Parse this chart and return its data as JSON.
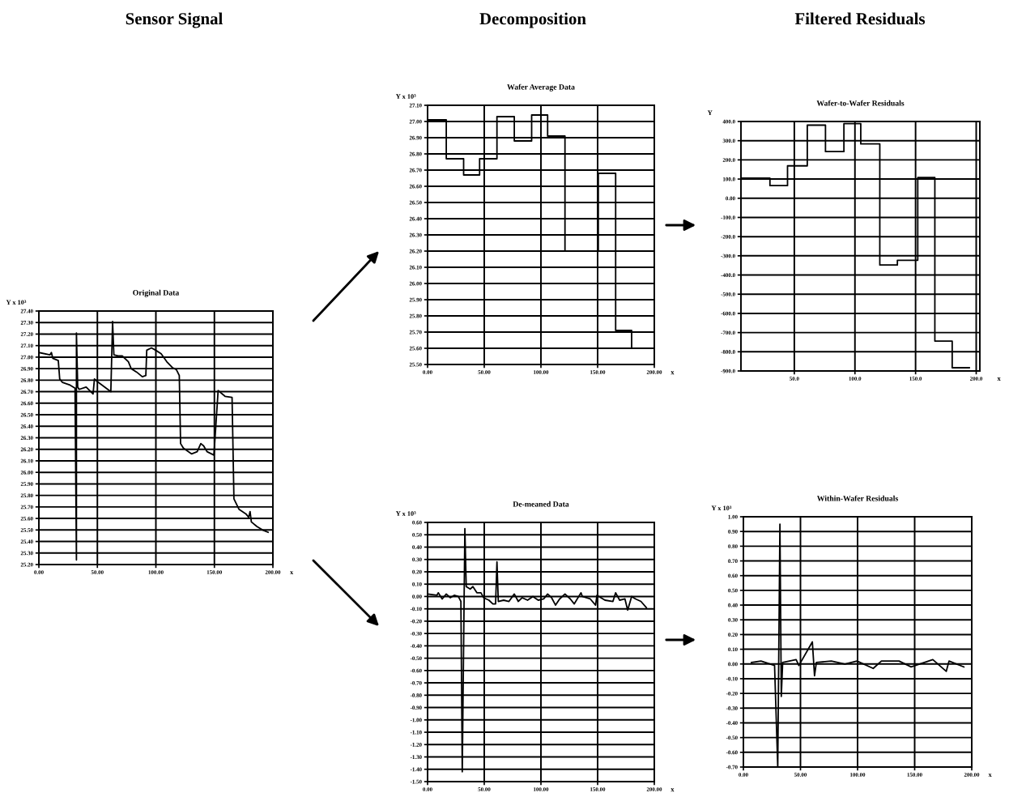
{
  "chart_data": [
    {
      "type": "line",
      "title": "Original Data",
      "annotations": [
        "Sensor Signal"
      ],
      "xlabel": "x",
      "ylabel": "Y x 10³",
      "color": "#000000",
      "grid": true,
      "x": [
        0,
        9.5,
        10.7,
        11.9,
        16.6,
        17.8,
        20.2,
        26.1,
        30.9,
        32.1,
        32.1,
        33.2,
        34.4,
        40.4,
        46.3,
        47.5,
        51,
        60.3,
        61.5,
        63.0,
        64.1,
        67.7,
        71.3,
        76.5,
        78.9,
        83.6,
        88.4,
        91.4,
        92.2,
        96.2,
        99.8,
        104.5,
        109.3,
        114,
        117.6,
        120,
        121.1,
        123.5,
        130.6,
        135.3,
        138.4,
        140.8,
        143.7,
        149.6,
        153.2,
        159.1,
        165.1,
        166.7,
        171,
        176.9,
        179.3,
        180.5,
        181.6,
        186.3,
        191.2,
        195.9
      ],
      "values": [
        27.04,
        27.02,
        27.04,
        26.99,
        26.97,
        26.81,
        26.78,
        26.76,
        26.73,
        25.24,
        27.21,
        26.74,
        26.72,
        26.74,
        26.68,
        26.81,
        26.78,
        26.71,
        26.7,
        27.31,
        27.02,
        27.01,
        27.01,
        26.96,
        26.9,
        26.87,
        26.83,
        26.84,
        27.06,
        27.08,
        27.06,
        27.03,
        26.96,
        26.91,
        26.89,
        26.84,
        26.25,
        26.21,
        26.16,
        26.18,
        26.25,
        26.23,
        26.18,
        26.15,
        26.71,
        26.66,
        26.65,
        25.77,
        25.68,
        25.64,
        25.61,
        25.66,
        25.57,
        25.53,
        25.5,
        25.48
      ],
      "xlim": [
        0,
        200
      ],
      "xticks": [
        {
          "value": 0,
          "label": "0.00"
        },
        {
          "value": 50,
          "label": "50.00"
        },
        {
          "value": 100,
          "label": "100.00"
        },
        {
          "value": 150,
          "label": "150.00"
        },
        {
          "value": 200,
          "label": "200.00"
        }
      ],
      "ylim": [
        25.2,
        27.4
      ],
      "yticks": [
        {
          "value": 27.4,
          "label": "27.40"
        },
        {
          "value": 27.3,
          "label": "27.30"
        },
        {
          "value": 27.2,
          "label": "27.20"
        },
        {
          "value": 27.1,
          "label": "27.10"
        },
        {
          "value": 27.0,
          "label": "27.00"
        },
        {
          "value": 26.9,
          "label": "26.90"
        },
        {
          "value": 26.8,
          "label": "26.80"
        },
        {
          "value": 26.7,
          "label": "26.70"
        },
        {
          "value": 26.6,
          "label": "26.60"
        },
        {
          "value": 26.5,
          "label": "26.50"
        },
        {
          "value": 26.4,
          "label": "26.40"
        },
        {
          "value": 26.3,
          "label": "26.30"
        },
        {
          "value": 26.2,
          "label": "26.20"
        },
        {
          "value": 26.1,
          "label": "26.10"
        },
        {
          "value": 26.0,
          "label": "26.00"
        },
        {
          "value": 25.9,
          "label": "25.90"
        },
        {
          "value": 25.8,
          "label": "25.80"
        },
        {
          "value": 25.7,
          "label": "25.70"
        },
        {
          "value": 25.6,
          "label": "25.60"
        },
        {
          "value": 25.5,
          "label": "25.50"
        },
        {
          "value": 25.4,
          "label": "25.40"
        },
        {
          "value": 25.3,
          "label": "25.30"
        },
        {
          "value": 25.2,
          "label": "25.20"
        }
      ]
    },
    {
      "type": "step",
      "title": "Wafer Average Data",
      "annotations": [
        "Decomposition"
      ],
      "xlabel": "x",
      "ylabel": "Y x 10³",
      "color": "#000000",
      "grid": true,
      "x": [
        1,
        16.5,
        31.8,
        45.9,
        61.2,
        76.5,
        91.8,
        105.9,
        121.2,
        150.6,
        165.9,
        180,
        194
      ],
      "values": [
        27.01,
        26.77,
        26.67,
        26.77,
        27.03,
        26.88,
        27.04,
        26.91,
        26.2,
        26.68,
        25.71,
        25.6,
        25.6
      ],
      "xlim": [
        0,
        200
      ],
      "xticks": [
        {
          "value": 0,
          "label": "0.00"
        },
        {
          "value": 50,
          "label": "50.00"
        },
        {
          "value": 100,
          "label": "100.00"
        },
        {
          "value": 150,
          "label": "150.00"
        },
        {
          "value": 200,
          "label": "200.00"
        }
      ],
      "ylim": [
        25.5,
        27.1
      ],
      "yticks": [
        {
          "value": 27.1,
          "label": "27.10"
        },
        {
          "value": 27.0,
          "label": "27.00"
        },
        {
          "value": 26.9,
          "label": "26.90"
        },
        {
          "value": 26.8,
          "label": "26.80"
        },
        {
          "value": 26.7,
          "label": "26.70"
        },
        {
          "value": 26.6,
          "label": "26.60"
        },
        {
          "value": 26.5,
          "label": "26.50"
        },
        {
          "value": 26.4,
          "label": "26.40"
        },
        {
          "value": 26.3,
          "label": "26.30"
        },
        {
          "value": 26.2,
          "label": "26.20"
        },
        {
          "value": 26.1,
          "label": "26.10"
        },
        {
          "value": 26.0,
          "label": "26.00"
        },
        {
          "value": 25.9,
          "label": "25.90"
        },
        {
          "value": 25.8,
          "label": "25.80"
        },
        {
          "value": 25.7,
          "label": "25.70"
        },
        {
          "value": 25.6,
          "label": "25.60"
        },
        {
          "value": 25.5,
          "label": "25.50"
        }
      ]
    },
    {
      "type": "step",
      "title": "Wafer-to-Wafer Residuals",
      "annotations": [
        "Filtered Residuals"
      ],
      "xlabel": "x",
      "ylabel": "Y",
      "color": "#000000",
      "grid": true,
      "x": [
        6.4,
        29.9,
        44.4,
        60.7,
        75.7,
        90.9,
        104.8,
        120.5,
        135,
        151.8,
        165.9,
        180.2,
        194.3
      ],
      "values": [
        105,
        66,
        169,
        381,
        243,
        389,
        283,
        -348,
        -323,
        108,
        -744,
        -883,
        -883
      ],
      "xlim": [
        6,
        203
      ],
      "xticks": [
        {
          "value": 50,
          "label": "50.0"
        },
        {
          "value": 100,
          "label": "100.0"
        },
        {
          "value": 150,
          "label": "150.0"
        },
        {
          "value": 200,
          "label": "200.0"
        }
      ],
      "ylim": [
        -900,
        400
      ],
      "yticks": [
        {
          "value": 400,
          "label": "400.0"
        },
        {
          "value": 300,
          "label": "300.0"
        },
        {
          "value": 200,
          "label": "200.0"
        },
        {
          "value": 100,
          "label": "100.0"
        },
        {
          "value": 0,
          "label": "0.00"
        },
        {
          "value": -100,
          "label": "-100.0"
        },
        {
          "value": -200,
          "label": "-200.0"
        },
        {
          "value": -300,
          "label": "-300.0"
        },
        {
          "value": -400,
          "label": "-400.0"
        },
        {
          "value": -500,
          "label": "-500.0"
        },
        {
          "value": -600,
          "label": "-600.0"
        },
        {
          "value": -700,
          "label": "-700.0"
        },
        {
          "value": -800,
          "label": "-800.0"
        },
        {
          "value": -900,
          "label": "-900.0"
        }
      ]
    },
    {
      "type": "line",
      "title": "De-meaned Data",
      "xlabel": "x",
      "ylabel": "Y x 10³",
      "color": "#000000",
      "grid": true,
      "x": [
        0,
        8.3,
        9.4,
        12.9,
        16.5,
        20,
        23.5,
        27.1,
        29.4,
        30.6,
        32.9,
        34.1,
        37.6,
        40,
        43.5,
        47.1,
        49.4,
        54.1,
        57.6,
        60,
        61.2,
        62.4,
        67.1,
        71.8,
        76.5,
        80,
        83.5,
        88.2,
        92.9,
        97.6,
        102.4,
        105.9,
        109.4,
        112.9,
        116.5,
        121.2,
        125.9,
        129.4,
        135.3,
        136.5,
        140,
        143.5,
        148.2,
        149.4,
        156.5,
        163.5,
        165.9,
        169.4,
        174.1,
        176.5,
        180,
        183.5,
        188.2,
        193
      ],
      "values": [
        0.02,
        0.01,
        0.03,
        -0.02,
        0.02,
        -0.01,
        0.01,
        0.0,
        -0.04,
        -1.42,
        0.55,
        0.08,
        0.06,
        0.08,
        0.03,
        0.03,
        -0.01,
        -0.03,
        -0.06,
        -0.06,
        0.28,
        -0.04,
        -0.03,
        -0.04,
        0.02,
        -0.04,
        -0.01,
        -0.03,
        0.0,
        -0.03,
        -0.02,
        0.02,
        -0.01,
        -0.07,
        -0.02,
        0.02,
        -0.02,
        -0.06,
        0.03,
        0.0,
        -0.01,
        -0.02,
        -0.07,
        0.01,
        -0.03,
        -0.04,
        0.03,
        -0.03,
        -0.02,
        -0.11,
        0.0,
        -0.02,
        -0.04,
        -0.09
      ],
      "xlim": [
        0,
        200
      ],
      "xticks": [
        {
          "value": 0,
          "label": "0.00"
        },
        {
          "value": 50,
          "label": "50.00"
        },
        {
          "value": 100,
          "label": "100.00"
        },
        {
          "value": 150,
          "label": "150.00"
        },
        {
          "value": 200,
          "label": "200.00"
        }
      ],
      "ylim": [
        -1.5,
        0.6
      ],
      "yticks": [
        {
          "value": 0.6,
          "label": "0.60"
        },
        {
          "value": 0.5,
          "label": "0.50"
        },
        {
          "value": 0.4,
          "label": "0.40"
        },
        {
          "value": 0.3,
          "label": "0.30"
        },
        {
          "value": 0.2,
          "label": "0.20"
        },
        {
          "value": 0.1,
          "label": "0.10"
        },
        {
          "value": 0,
          "label": "0.00"
        },
        {
          "value": -0.1,
          "label": "-0.10"
        },
        {
          "value": -0.2,
          "label": "-0.20"
        },
        {
          "value": -0.3,
          "label": "-0.30"
        },
        {
          "value": -0.4,
          "label": "-0.40"
        },
        {
          "value": -0.5,
          "label": "-0.50"
        },
        {
          "value": -0.6,
          "label": "-0.60"
        },
        {
          "value": -0.7,
          "label": "-0.70"
        },
        {
          "value": -0.8,
          "label": "-0.80"
        },
        {
          "value": -0.9,
          "label": "-0.90"
        },
        {
          "value": -1.0,
          "label": "-1.00"
        },
        {
          "value": -1.1,
          "label": "-1.10"
        },
        {
          "value": -1.2,
          "label": "-1.20"
        },
        {
          "value": -1.3,
          "label": "-1.30"
        },
        {
          "value": -1.4,
          "label": "-1.40"
        },
        {
          "value": -1.5,
          "label": "-1.50"
        }
      ]
    },
    {
      "type": "line",
      "title": "Within-Wafer Residuals",
      "xlabel": "x",
      "ylabel": "Y x 10³",
      "color": "#000000",
      "grid": true,
      "x": [
        7.1,
        15.4,
        27.3,
        30.1,
        32,
        33.2,
        34.4,
        46.2,
        48.6,
        60.4,
        62.3,
        63.9,
        77,
        88.9,
        99.5,
        113.7,
        120.9,
        136.3,
        146.9,
        165.9,
        177.7,
        180.1,
        193.1
      ],
      "values": [
        0.01,
        0.02,
        -0.01,
        -0.7,
        0.95,
        -0.22,
        0.01,
        0.03,
        -0.01,
        0.15,
        -0.08,
        0.01,
        0.02,
        0.0,
        0.02,
        -0.03,
        0.02,
        0.02,
        -0.02,
        0.03,
        -0.05,
        0.02,
        -0.02
      ],
      "xlim": [
        0,
        200
      ],
      "xticks": [
        {
          "value": 0,
          "label": "0.00"
        },
        {
          "value": 50,
          "label": "50.00"
        },
        {
          "value": 100,
          "label": "100.00"
        },
        {
          "value": 150,
          "label": "150.00"
        },
        {
          "value": 200,
          "label": "200.00"
        }
      ],
      "ylim": [
        -0.7,
        1.0
      ],
      "yticks": [
        {
          "value": 1.0,
          "label": "1.00"
        },
        {
          "value": 0.9,
          "label": "0.90"
        },
        {
          "value": 0.8,
          "label": "0.80"
        },
        {
          "value": 0.7,
          "label": "0.70"
        },
        {
          "value": 0.6,
          "label": "0.60"
        },
        {
          "value": 0.5,
          "label": "0.50"
        },
        {
          "value": 0.4,
          "label": "0.40"
        },
        {
          "value": 0.3,
          "label": "0.30"
        },
        {
          "value": 0.2,
          "label": "0.20"
        },
        {
          "value": 0.1,
          "label": "0.10"
        },
        {
          "value": 0,
          "label": "0.00"
        },
        {
          "value": -0.1,
          "label": "-0.10"
        },
        {
          "value": -0.2,
          "label": "-0.20"
        },
        {
          "value": -0.3,
          "label": "-0.30"
        },
        {
          "value": -0.4,
          "label": "-0.40"
        },
        {
          "value": -0.5,
          "label": "-0.50"
        },
        {
          "value": -0.6,
          "label": "-0.60"
        },
        {
          "value": -0.7,
          "label": "-0.70"
        }
      ]
    }
  ]
}
